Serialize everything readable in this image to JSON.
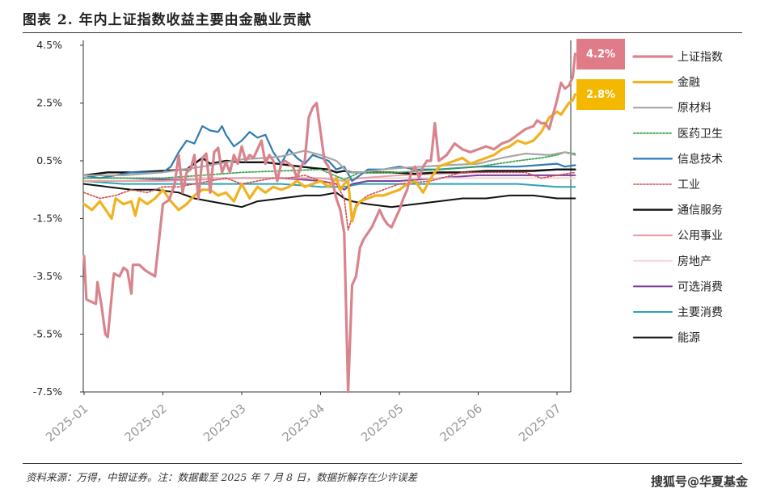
{
  "header": {
    "title": "图表 2. 年内上证指数收益主要由金融业贡献"
  },
  "footer": {
    "source": "资料来源：万得，中银证券。注：数据截至 2025 年 7 月 8 日，数据折解存在少许误差",
    "watermark": "搜狐号@华夏基金"
  },
  "chart_data": {
    "type": "line",
    "title": "",
    "xlabel": "",
    "ylabel": "",
    "y_unit": "%",
    "ylim": [
      -7.5,
      4.5
    ],
    "yticks": [
      4.5,
      2.5,
      0.5,
      -1.5,
      -3.5,
      -5.5,
      -7.5
    ],
    "ytick_labels": [
      "4.5%",
      "2.5%",
      "0.5%",
      "-1.5%",
      "-3.5%",
      "-5.5%",
      "-7.5%"
    ],
    "xticks": [
      0,
      1,
      2,
      3,
      4,
      5,
      6
    ],
    "xtick_labels": [
      "2025-01",
      "2025-02",
      "2025-03",
      "2025-04",
      "2025-05",
      "2025-06",
      "2025-07"
    ],
    "xlim": [
      0,
      6.25
    ],
    "grid": false,
    "legend_position": "right",
    "end_labels": [
      {
        "series": "上证指数",
        "text": "4.2%",
        "color": "#e07b88"
      },
      {
        "series": "金融",
        "text": "2.8%",
        "color": "#f5b800"
      }
    ],
    "series": [
      {
        "name": "上证指数",
        "color": "#d9838d",
        "width": 3.2,
        "dash": "",
        "x": [
          0,
          0.03,
          0.15,
          0.17,
          0.22,
          0.27,
          0.3,
          0.37,
          0.38,
          0.45,
          0.5,
          0.55,
          0.6,
          0.62,
          0.7,
          0.78,
          0.9,
          1.0,
          1.08,
          1.15,
          1.2,
          1.25,
          1.3,
          1.35,
          1.4,
          1.45,
          1.5,
          1.55,
          1.6,
          1.65,
          1.7,
          1.75,
          1.8,
          1.85,
          1.9,
          1.95,
          2.0,
          2.05,
          2.1,
          2.15,
          2.2,
          2.25,
          2.3,
          2.35,
          2.4,
          2.45,
          2.5,
          2.55,
          2.6,
          2.65,
          2.7,
          2.75,
          2.8,
          2.85,
          2.9,
          2.95,
          3.0,
          3.05,
          3.1,
          3.15,
          3.2,
          3.25,
          3.3,
          3.35,
          3.4,
          3.45,
          3.5,
          3.55,
          3.6,
          3.65,
          3.7,
          3.75,
          3.8,
          3.85,
          3.9,
          3.95,
          4.0,
          4.05,
          4.1,
          4.15,
          4.2,
          4.25,
          4.3,
          4.35,
          4.4,
          4.45,
          4.5,
          4.6,
          4.7,
          4.8,
          4.9,
          5.0,
          5.1,
          5.2,
          5.3,
          5.4,
          5.5,
          5.6,
          5.7,
          5.75,
          5.8,
          5.85,
          5.9,
          5.95,
          6.0,
          6.05,
          6.1,
          6.15,
          6.2,
          6.23
        ],
        "y": [
          -2.8,
          -4.3,
          -4.45,
          -3.7,
          -4.5,
          -5.5,
          -5.6,
          -3.6,
          -3.4,
          -3.5,
          -3.2,
          -3.3,
          -4.1,
          -3.1,
          -3.1,
          -3.3,
          -3.5,
          -1.0,
          -0.85,
          -0.3,
          0.7,
          -0.6,
          0.1,
          0.2,
          0.7,
          -0.8,
          0.6,
          0.75,
          -0.6,
          0.8,
          0.95,
          0.1,
          0.45,
          0.1,
          0.7,
          0.4,
          1.0,
          0.5,
          0.7,
          0.6,
          0.9,
          1.2,
          0.4,
          0.7,
          0.5,
          -0.2,
          0.4,
          0.5,
          0.4,
          0.3,
          -0.1,
          0.3,
          0.5,
          2.0,
          2.35,
          2.5,
          1.5,
          0.5,
          0.3,
          -0.2,
          -0.8,
          -1.2,
          -2.0,
          -7.5,
          -3.8,
          -3.5,
          -2.5,
          -2.2,
          -2.0,
          -1.8,
          -1.5,
          -1.2,
          -1.5,
          -1.7,
          -1.8,
          -1.5,
          -1.2,
          -0.8,
          -0.5,
          0.1,
          0.3,
          -0.1,
          0.3,
          0.5,
          0.5,
          1.8,
          0.5,
          0.7,
          1.1,
          0.9,
          0.8,
          0.9,
          1.0,
          0.9,
          1.1,
          1.2,
          1.4,
          1.6,
          1.7,
          1.9,
          1.8,
          1.8,
          1.6,
          2.1,
          2.6,
          3.2,
          3.0,
          3.1,
          3.4,
          4.2
        ]
      },
      {
        "name": "金融",
        "color": "#f0b21f",
        "width": 3.2,
        "dash": "",
        "x": [
          0,
          0.1,
          0.2,
          0.3,
          0.35,
          0.4,
          0.5,
          0.6,
          0.65,
          0.7,
          0.8,
          0.9,
          1.0,
          1.1,
          1.2,
          1.3,
          1.4,
          1.5,
          1.6,
          1.7,
          1.8,
          1.9,
          2.0,
          2.1,
          2.2,
          2.3,
          2.4,
          2.5,
          2.6,
          2.7,
          2.8,
          2.9,
          3.0,
          3.1,
          3.2,
          3.25,
          3.3,
          3.35,
          3.4,
          3.45,
          3.5,
          3.6,
          3.7,
          3.8,
          3.9,
          4.0,
          4.1,
          4.2,
          4.3,
          4.4,
          4.5,
          4.6,
          4.7,
          4.8,
          4.9,
          5.0,
          5.1,
          5.2,
          5.3,
          5.4,
          5.5,
          5.6,
          5.7,
          5.8,
          5.9,
          6.0,
          6.05,
          6.1,
          6.15,
          6.2,
          6.23
        ],
        "y": [
          -1.0,
          -1.2,
          -0.9,
          -1.3,
          -1.5,
          -0.8,
          -1.0,
          -0.9,
          -1.4,
          -0.8,
          -1.0,
          -0.8,
          -0.5,
          -0.9,
          -1.2,
          -1.0,
          -0.7,
          -0.5,
          -0.5,
          -0.7,
          -0.6,
          -0.9,
          -0.3,
          -0.8,
          -0.4,
          -0.6,
          -0.4,
          -0.5,
          -0.4,
          -0.2,
          -0.4,
          -0.3,
          -0.2,
          -0.4,
          -0.1,
          -0.5,
          -0.3,
          -0.2,
          -1.6,
          -1.1,
          -0.9,
          -0.8,
          -0.7,
          -0.7,
          -0.6,
          -0.5,
          -0.3,
          -0.2,
          -0.6,
          -0.1,
          0.3,
          0.4,
          0.5,
          0.6,
          0.4,
          0.5,
          0.6,
          0.7,
          0.9,
          1.0,
          1.2,
          1.1,
          1.2,
          1.5,
          2.0,
          2.2,
          2.1,
          2.3,
          2.5,
          2.6,
          2.8
        ]
      },
      {
        "name": "原材料",
        "color": "#a6a6a6",
        "width": 2.2,
        "dash": "",
        "x": [
          0,
          0.5,
          1.0,
          1.5,
          2.0,
          2.3,
          2.5,
          2.8,
          3.0,
          3.2,
          3.35,
          3.5,
          3.8,
          4.0,
          4.3,
          4.6,
          5.0,
          5.3,
          5.6,
          5.9,
          6.1,
          6.23
        ],
        "y": [
          0.0,
          0.0,
          0.1,
          0.3,
          0.55,
          0.6,
          0.65,
          0.85,
          0.7,
          0.5,
          0.1,
          0.1,
          0.2,
          0.25,
          0.3,
          0.35,
          0.4,
          0.6,
          0.75,
          0.7,
          0.8,
          0.7
        ]
      },
      {
        "name": "医药卫生",
        "color": "#3aa64c",
        "width": 1.8,
        "dash": "2,2",
        "x": [
          0,
          0.5,
          1.0,
          1.5,
          2.0,
          2.5,
          3.0,
          3.3,
          3.5,
          4.0,
          4.5,
          5.0,
          5.5,
          5.8,
          6.0,
          6.1,
          6.23
        ],
        "y": [
          -0.1,
          -0.1,
          -0.1,
          0.0,
          0.1,
          0.15,
          0.2,
          -0.15,
          0.1,
          0.1,
          0.2,
          0.3,
          0.5,
          0.6,
          0.7,
          0.8,
          0.75
        ]
      },
      {
        "name": "信息技术",
        "color": "#2e7bb4",
        "width": 2.2,
        "dash": "",
        "x": [
          0,
          0.2,
          0.4,
          0.6,
          0.8,
          1.0,
          1.1,
          1.2,
          1.3,
          1.4,
          1.5,
          1.6,
          1.7,
          1.75,
          1.8,
          1.9,
          2.0,
          2.1,
          2.2,
          2.3,
          2.4,
          2.5,
          2.6,
          2.7,
          2.8,
          2.9,
          3.0,
          3.1,
          3.2,
          3.3,
          3.4,
          3.5,
          3.6,
          3.8,
          4.0,
          4.2,
          4.5,
          5.0,
          5.5,
          6.0,
          6.1,
          6.23
        ],
        "y": [
          0.0,
          -0.1,
          0.0,
          0.1,
          0.1,
          0.1,
          0.3,
          0.8,
          1.2,
          1.1,
          1.7,
          1.55,
          1.5,
          1.7,
          1.4,
          1.0,
          1.2,
          1.5,
          1.3,
          1.4,
          0.8,
          0.4,
          0.9,
          0.6,
          0.4,
          0.7,
          0.6,
          0.5,
          0.2,
          0.3,
          -0.2,
          0.0,
          0.2,
          0.2,
          0.3,
          0.2,
          0.2,
          0.3,
          0.3,
          0.4,
          0.3,
          0.35
        ]
      },
      {
        "name": "工业",
        "color": "#d14b4b",
        "width": 1.6,
        "dash": "2,2",
        "x": [
          0,
          0.2,
          0.4,
          0.6,
          0.8,
          1.0,
          1.2,
          1.4,
          1.6,
          1.8,
          2.0,
          2.2,
          2.4,
          2.6,
          2.8,
          3.0,
          3.2,
          3.3,
          3.35,
          3.45,
          3.6,
          4.0,
          4.4,
          4.8,
          5.2,
          5.6,
          5.8,
          6.0,
          6.23
        ],
        "y": [
          -0.6,
          -0.8,
          -0.7,
          -0.5,
          -0.6,
          -0.4,
          -0.4,
          -0.3,
          -0.2,
          -0.1,
          -0.3,
          -0.2,
          -0.1,
          -0.1,
          0.0,
          -0.2,
          -0.3,
          -0.8,
          -1.9,
          -1.0,
          -0.7,
          -0.3,
          -0.2,
          0.1,
          0.1,
          0.1,
          -0.1,
          0.0,
          0.1
        ]
      },
      {
        "name": "通信服务",
        "color": "#111111",
        "width": 2.4,
        "dash": "",
        "x": [
          0,
          0.3,
          0.6,
          1.0,
          1.3,
          1.5,
          1.6,
          1.8,
          2.0,
          2.3,
          2.6,
          2.9,
          3.1,
          3.2,
          3.3,
          3.4,
          3.6,
          3.9,
          4.2,
          4.5,
          4.8,
          5.1,
          5.4,
          5.7,
          6.0,
          6.23
        ],
        "y": [
          0.0,
          0.1,
          0.1,
          0.15,
          0.2,
          0.6,
          0.4,
          0.5,
          0.45,
          0.45,
          0.35,
          0.25,
          0.2,
          0.1,
          0.15,
          0.1,
          0.1,
          0.1,
          0.05,
          0.1,
          0.1,
          0.15,
          0.15,
          0.15,
          0.2,
          0.2
        ]
      },
      {
        "name": "公用事业",
        "color": "#e4a0a6",
        "width": 2.0,
        "dash": "",
        "x": [
          0,
          1.0,
          2.0,
          3.0,
          3.3,
          3.5,
          4.0,
          5.0,
          6.0,
          6.23
        ],
        "y": [
          -0.2,
          -0.2,
          -0.1,
          -0.1,
          -0.2,
          -0.1,
          0.0,
          0.1,
          0.2,
          0.2
        ]
      },
      {
        "name": "房地产",
        "color": "#f3d3d6",
        "width": 2.0,
        "dash": "",
        "x": [
          0,
          1.0,
          2.0,
          3.0,
          4.0,
          5.0,
          6.0,
          6.23
        ],
        "y": [
          -0.1,
          -0.1,
          -0.1,
          -0.1,
          -0.1,
          -0.1,
          -0.1,
          -0.1
        ]
      },
      {
        "name": "可选消费",
        "color": "#7a3e9d",
        "width": 2.0,
        "dash": "",
        "x": [
          0,
          0.5,
          1.0,
          1.5,
          2.0,
          2.5,
          3.0,
          3.2,
          3.3,
          3.4,
          3.6,
          4.0,
          4.5,
          5.0,
          5.5,
          6.0,
          6.23
        ],
        "y": [
          -0.1,
          -0.1,
          -0.15,
          -0.1,
          -0.1,
          -0.1,
          -0.2,
          -0.3,
          -0.5,
          -0.3,
          -0.2,
          -0.2,
          -0.1,
          0.0,
          0.0,
          0.0,
          0.0
        ]
      },
      {
        "name": "主要消费",
        "color": "#2aa3b5",
        "width": 2.0,
        "dash": "",
        "x": [
          0,
          0.5,
          1.0,
          1.5,
          2.0,
          2.5,
          3.0,
          3.3,
          3.5,
          4.0,
          4.5,
          5.0,
          5.5,
          6.0,
          6.23
        ],
        "y": [
          -0.2,
          -0.3,
          -0.3,
          -0.3,
          -0.3,
          -0.3,
          -0.4,
          -0.4,
          -0.3,
          -0.3,
          -0.3,
          -0.3,
          -0.3,
          -0.4,
          -0.4
        ]
      },
      {
        "name": "能源",
        "color": "#111111",
        "width": 2.0,
        "dash": "",
        "x": [
          0,
          0.3,
          0.6,
          0.9,
          1.2,
          1.4,
          1.6,
          1.8,
          2.0,
          2.2,
          2.5,
          2.8,
          3.0,
          3.2,
          3.3,
          3.4,
          3.6,
          3.9,
          4.2,
          4.5,
          4.8,
          5.1,
          5.4,
          5.7,
          6.0,
          6.23
        ],
        "y": [
          -0.3,
          -0.4,
          -0.5,
          -0.5,
          -0.6,
          -0.8,
          -0.9,
          -1.0,
          -1.1,
          -0.9,
          -0.8,
          -0.7,
          -0.7,
          -0.6,
          -0.8,
          -0.9,
          -1.0,
          -1.1,
          -1.0,
          -0.9,
          -0.8,
          -0.8,
          -0.7,
          -0.7,
          -0.8,
          -0.8
        ]
      }
    ]
  }
}
